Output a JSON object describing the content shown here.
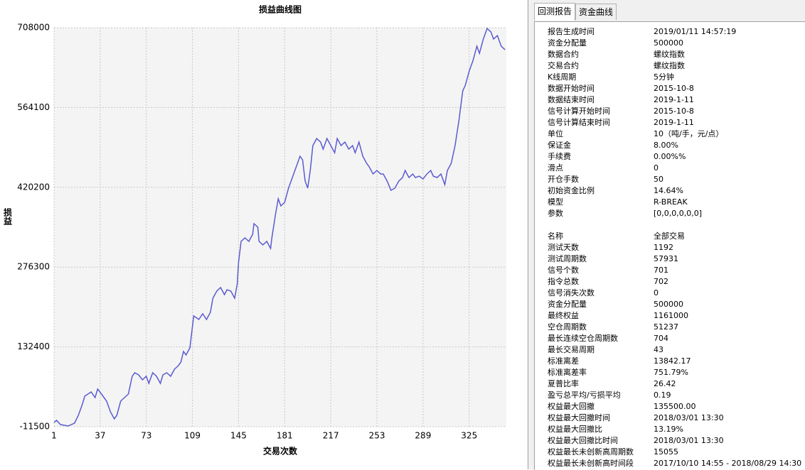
{
  "chart_data": {
    "type": "line",
    "title": "损益曲线图",
    "x_label": "交易次数",
    "y_label": "损益",
    "color": "#5b5bd0",
    "grid": true,
    "xlim": [
      1,
      354
    ],
    "xticks": [
      1,
      37,
      73,
      109,
      145,
      181,
      217,
      253,
      289,
      325
    ],
    "ylim": [
      -11500,
      708000
    ],
    "yticks": [
      -11500,
      132400,
      276300,
      420200,
      564100,
      708000
    ],
    "x": [
      1,
      3,
      6,
      12,
      17,
      20,
      23,
      25,
      30,
      33,
      35,
      38,
      42,
      45,
      48,
      50,
      53,
      56,
      59,
      62,
      64,
      67,
      70,
      73,
      75,
      78,
      81,
      84,
      86,
      89,
      92,
      95,
      98,
      100,
      102,
      104,
      107,
      109,
      110,
      114,
      117,
      120,
      123,
      125,
      128,
      131,
      134,
      136,
      139,
      142,
      144,
      145,
      147,
      150,
      153,
      156,
      157,
      160,
      161,
      164,
      167,
      170,
      171,
      174,
      176,
      178,
      181,
      184,
      186,
      189,
      191,
      193,
      195,
      197,
      199,
      201,
      203,
      206,
      209,
      211,
      214,
      217,
      220,
      222,
      225,
      228,
      231,
      234,
      236,
      239,
      242,
      245,
      247,
      250,
      253,
      256,
      258,
      261,
      264,
      267,
      270,
      273,
      275,
      278,
      281,
      283,
      286,
      289,
      292,
      295,
      297,
      300,
      303,
      306,
      308,
      311,
      314,
      317,
      320,
      322,
      325,
      328,
      331,
      333,
      336,
      339,
      342,
      344,
      347,
      350,
      353
    ],
    "values": [
      -3800,
      0,
      -7700,
      -10200,
      -5100,
      9000,
      28200,
      43500,
      51200,
      41000,
      56300,
      47400,
      34600,
      15400,
      2600,
      9000,
      34600,
      41000,
      47400,
      79400,
      85800,
      81900,
      73000,
      79400,
      66600,
      85800,
      79400,
      66600,
      81900,
      85800,
      79400,
      92200,
      98600,
      105000,
      124200,
      117800,
      130600,
      169000,
      188200,
      181800,
      192000,
      181800,
      194600,
      220200,
      233000,
      239400,
      226600,
      235500,
      233000,
      220200,
      245800,
      284200,
      322600,
      329000,
      322600,
      335400,
      354600,
      348200,
      322600,
      316200,
      322600,
      309800,
      329000,
      373800,
      399400,
      386600,
      393000,
      418600,
      431400,
      450600,
      463400,
      476200,
      469800,
      431400,
      418600,
      450600,
      495400,
      508200,
      501800,
      489000,
      508200,
      495400,
      482600,
      508200,
      495400,
      501800,
      489000,
      495400,
      482600,
      501800,
      476200,
      463400,
      457000,
      444200,
      450600,
      444200,
      444200,
      431400,
      414700,
      418600,
      431400,
      437800,
      450600,
      437800,
      444200,
      437800,
      440300,
      435200,
      444200,
      450600,
      440300,
      437800,
      444200,
      425000,
      450600,
      463400,
      495400,
      540200,
      593900,
      604200,
      629800,
      649000,
      674600,
      661800,
      687400,
      706600,
      700200,
      687400,
      693800,
      674600,
      668200
    ]
  },
  "tabs": [
    "回测报告",
    "资金曲线"
  ],
  "report": {
    "sections": [
      [
        [
          "报告生成时间",
          "2019/01/11 14:57:19"
        ],
        [
          "资金分配量",
          "500000"
        ],
        [
          "数据合约",
          "螺纹指数"
        ],
        [
          "交易合约",
          "螺纹指数"
        ],
        [
          "K线周期",
          "5分钟"
        ],
        [
          "数据开始时间",
          "2015-10-8"
        ],
        [
          "数据结束时间",
          "2019-1-11"
        ],
        [
          "信号计算开始时间",
          "2015-10-8"
        ],
        [
          "信号计算结束时间",
          "2019-1-11"
        ],
        [
          "单位",
          "10（吨/手，元/点）"
        ],
        [
          "保证金",
          "8.00%"
        ],
        [
          "手续费",
          "0.00%%"
        ],
        [
          "滑点",
          "0"
        ],
        [
          "开仓手数",
          "50"
        ],
        [
          "初始资金比例",
          "14.64%"
        ],
        [
          "模型",
          "R-BREAK"
        ],
        [
          "参数",
          "[0,0,0,0,0,0]"
        ]
      ],
      [
        [
          "名称",
          "全部交易"
        ],
        [
          "测试天数",
          "1192"
        ],
        [
          "测试周期数",
          "57931"
        ],
        [
          "信号个数",
          "701"
        ],
        [
          "指令总数",
          "702"
        ],
        [
          "信号消失次数",
          "0"
        ],
        [
          "资金分配量",
          "500000"
        ],
        [
          "最终权益",
          "1161000"
        ],
        [
          "空仓周期数",
          "51237"
        ],
        [
          "最长连续空仓周期数",
          "704"
        ],
        [
          "最长交易周期",
          "43"
        ],
        [
          "标准离差",
          "13842.17"
        ],
        [
          "标准离差率",
          "751.79%"
        ],
        [
          "夏普比率",
          "26.42"
        ],
        [
          "盈亏总平均/亏损平均",
          "0.19"
        ],
        [
          "权益最大回撤",
          "135500.00"
        ],
        [
          "权益最大回撤时间",
          "2018/03/01 13:30"
        ],
        [
          "权益最大回撤比",
          "13.19%"
        ],
        [
          "权益最大回撤比时间",
          "2018/03/01 13:30"
        ],
        [
          "权益最长未创新高周期数",
          "15055"
        ],
        [
          "权益最长未创新高时间段",
          "2017/10/10 14:55 - 2018/08/29 14:30"
        ]
      ]
    ]
  }
}
